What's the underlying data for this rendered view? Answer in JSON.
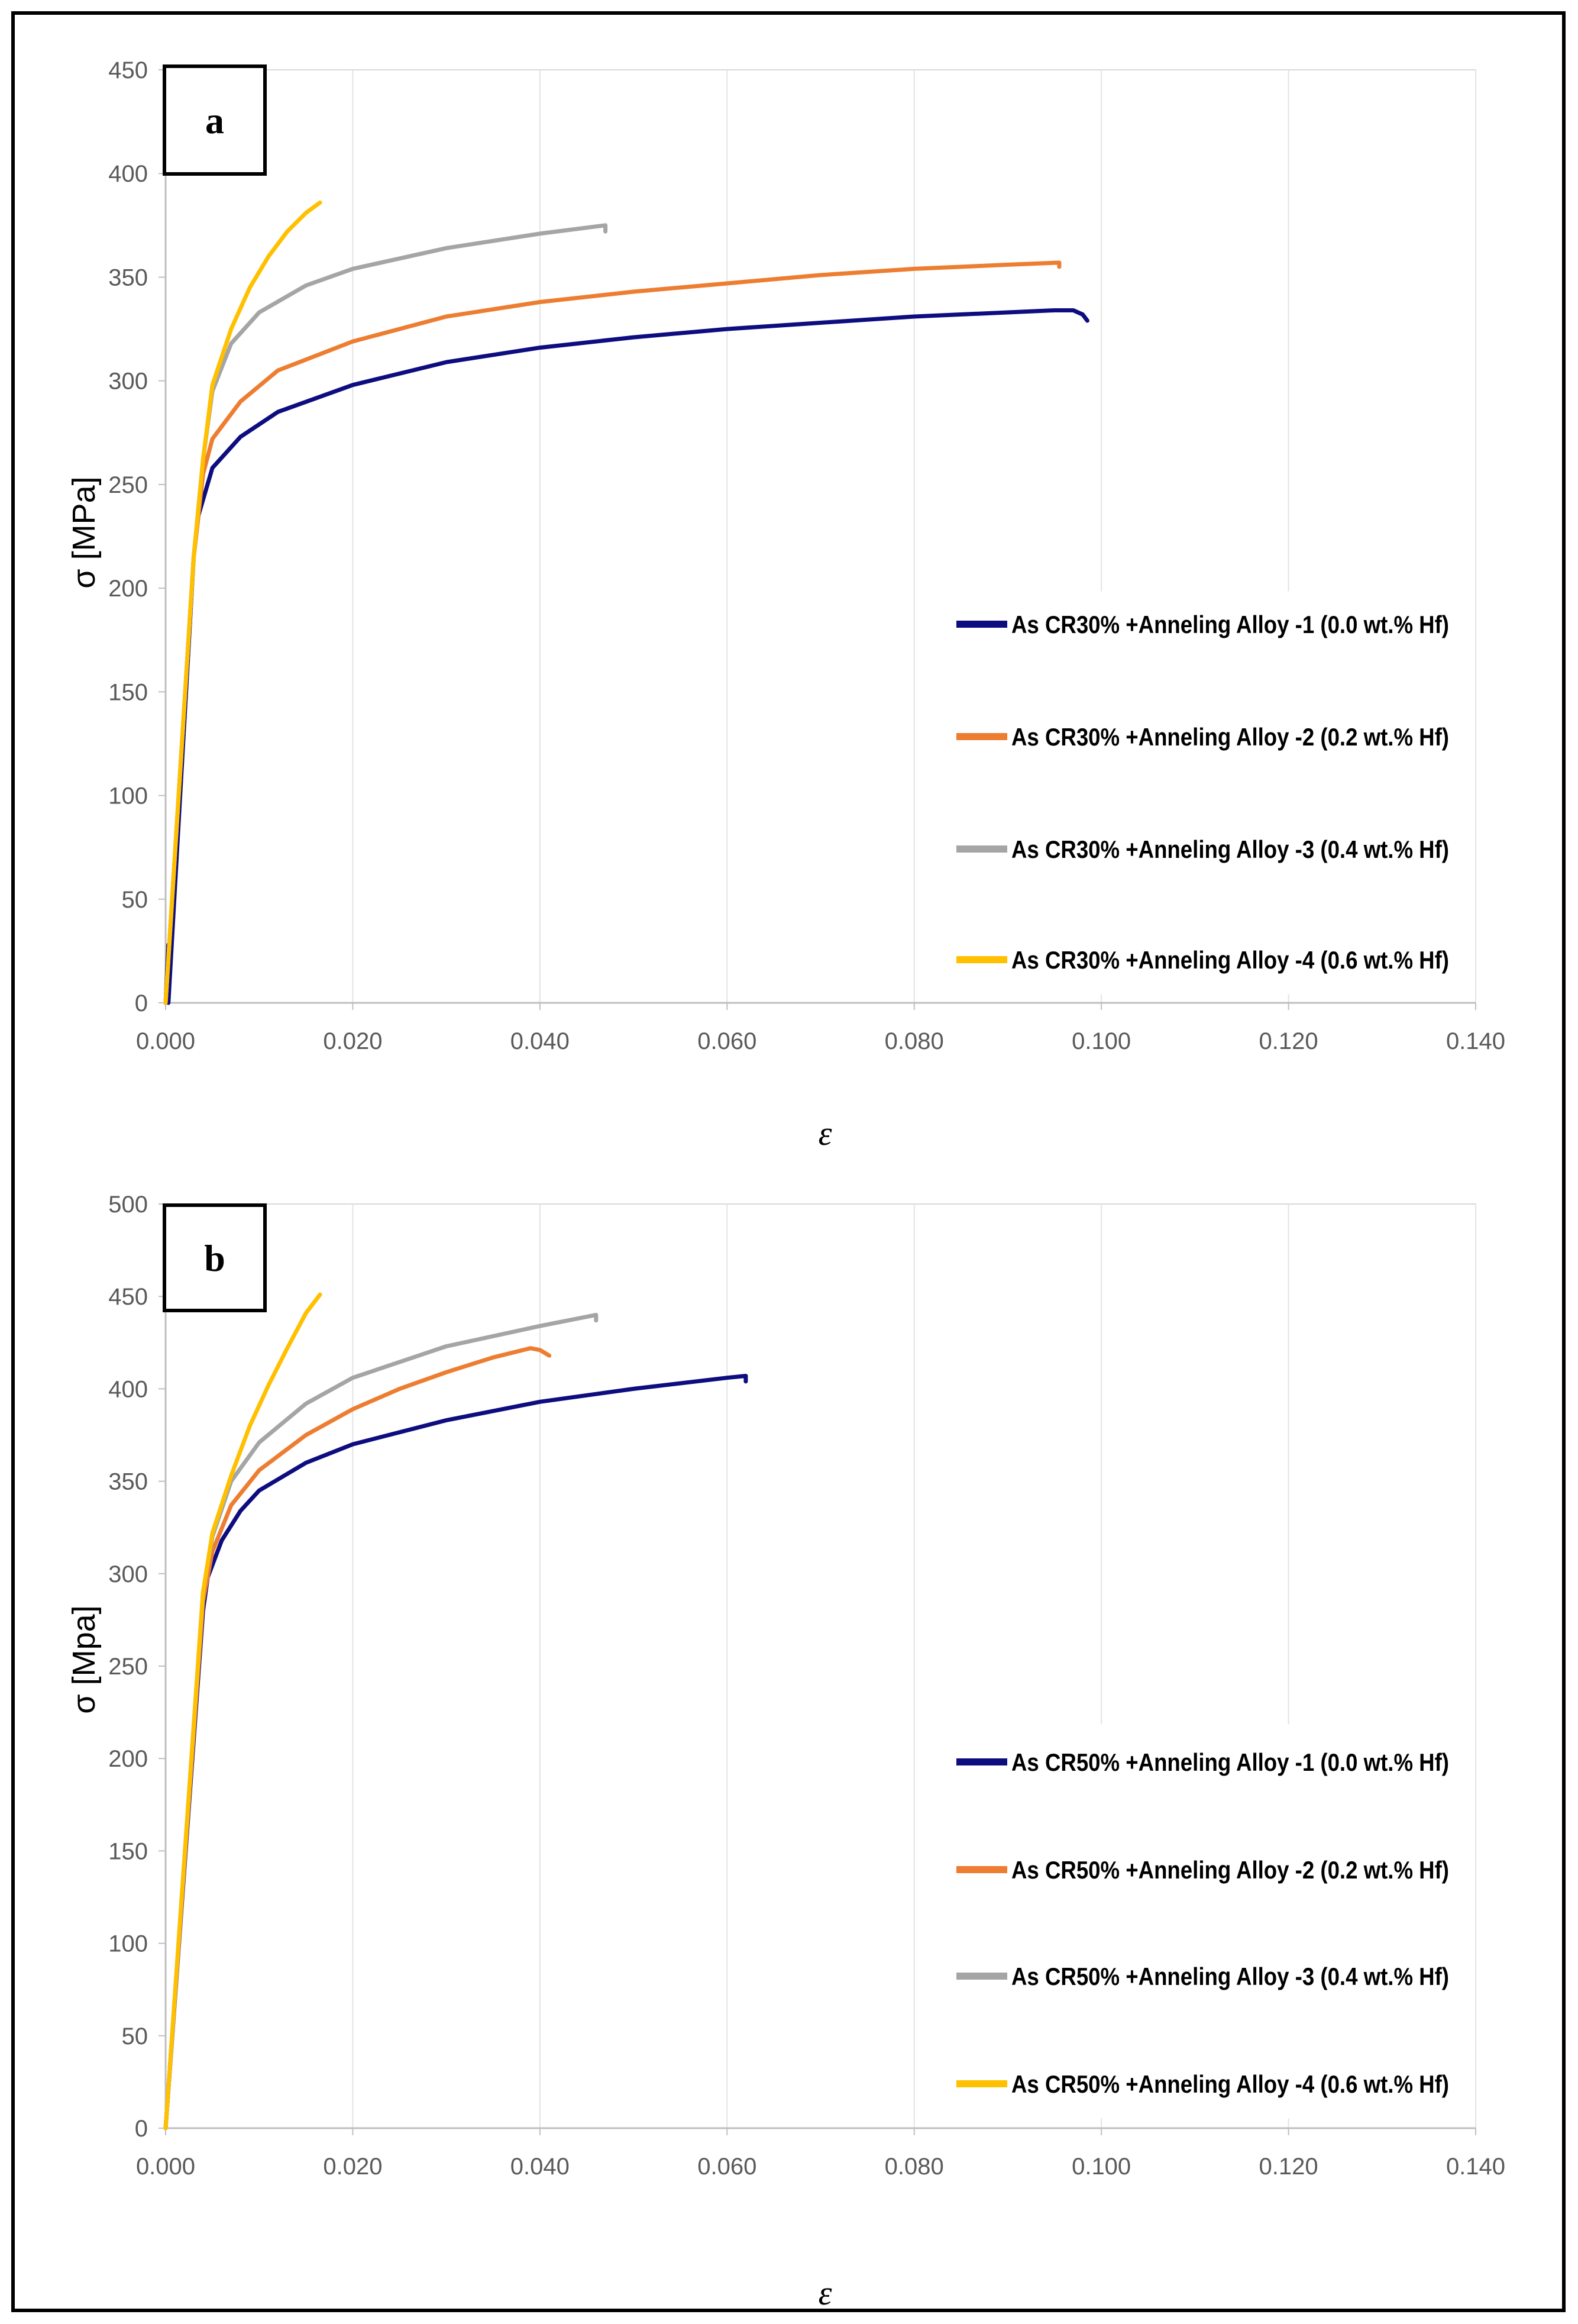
{
  "chart_data": [
    {
      "type": "line",
      "panel_label": "a",
      "ylabel": "σ [MPa]",
      "xlabel": "ε",
      "xlim": [
        0,
        0.14
      ],
      "ylim": [
        0,
        450
      ],
      "x_ticks": [
        0.0,
        0.02,
        0.04,
        0.06,
        0.08,
        0.1,
        0.12,
        0.14
      ],
      "x_tick_labels": [
        "0.000",
        "0.020",
        "0.040",
        "0.060",
        "0.080",
        "0.100",
        "0.120",
        "0.140"
      ],
      "y_ticks": [
        0,
        50,
        100,
        150,
        200,
        250,
        300,
        350,
        400,
        450
      ],
      "y_tick_labels": [
        "0",
        "50",
        "100",
        "150",
        "200",
        "250",
        "300",
        "350",
        "400",
        "450"
      ],
      "grid": "vertical",
      "legend_position": "bottom-right",
      "series": [
        {
          "name": "As CR30% +Anneling Alloy -1 (0.0 wt.% Hf)",
          "color": "#0d0d80",
          "points": [
            [
              0,
              0
            ],
            [
              0.0003,
              28
            ],
            [
              0.0003,
              0
            ],
            [
              0.003,
              215
            ],
            [
              0.0035,
              235
            ],
            [
              0.005,
              258
            ],
            [
              0.008,
              273
            ],
            [
              0.012,
              285
            ],
            [
              0.02,
              298
            ],
            [
              0.03,
              309
            ],
            [
              0.04,
              316
            ],
            [
              0.05,
              321
            ],
            [
              0.06,
              325
            ],
            [
              0.07,
              328
            ],
            [
              0.08,
              331
            ],
            [
              0.09,
              333
            ],
            [
              0.095,
              334
            ],
            [
              0.097,
              334
            ],
            [
              0.098,
              332
            ],
            [
              0.0985,
              329
            ]
          ]
        },
        {
          "name": "As CR30% +Anneling Alloy -2 (0.2 wt.% Hf)",
          "color": "#ed7d31",
          "points": [
            [
              0,
              0
            ],
            [
              0.003,
              215
            ],
            [
              0.004,
              255
            ],
            [
              0.005,
              272
            ],
            [
              0.008,
              290
            ],
            [
              0.012,
              305
            ],
            [
              0.02,
              319
            ],
            [
              0.03,
              331
            ],
            [
              0.04,
              338
            ],
            [
              0.05,
              343
            ],
            [
              0.06,
              347
            ],
            [
              0.07,
              351
            ],
            [
              0.08,
              354
            ],
            [
              0.09,
              356
            ],
            [
              0.0955,
              357
            ],
            [
              0.0955,
              355
            ]
          ]
        },
        {
          "name": "As CR30% +Anneling Alloy -3 (0.4 wt.% Hf)",
          "color": "#a5a5a5",
          "points": [
            [
              0,
              0
            ],
            [
              0.003,
              215
            ],
            [
              0.004,
              262
            ],
            [
              0.005,
              295
            ],
            [
              0.007,
              318
            ],
            [
              0.01,
              333
            ],
            [
              0.015,
              346
            ],
            [
              0.02,
              354
            ],
            [
              0.03,
              364
            ],
            [
              0.04,
              371
            ],
            [
              0.047,
              375
            ],
            [
              0.047,
              372
            ]
          ]
        },
        {
          "name": "As CR30% +Anneling Alloy -4 (0.6 wt.% Hf)",
          "color": "#ffc000",
          "points": [
            [
              0,
              0
            ],
            [
              0.003,
              215
            ],
            [
              0.004,
              262
            ],
            [
              0.005,
              298
            ],
            [
              0.007,
              325
            ],
            [
              0.009,
              345
            ],
            [
              0.011,
              360
            ],
            [
              0.013,
              372
            ],
            [
              0.015,
              381
            ],
            [
              0.0165,
              386
            ]
          ]
        }
      ]
    },
    {
      "type": "line",
      "panel_label": "b",
      "ylabel": "σ [Mpa]",
      "xlabel": "ε",
      "xlim": [
        0,
        0.14
      ],
      "ylim": [
        0,
        500
      ],
      "x_ticks": [
        0.0,
        0.02,
        0.04,
        0.06,
        0.08,
        0.1,
        0.12,
        0.14
      ],
      "x_tick_labels": [
        "0.000",
        "0.020",
        "0.040",
        "0.060",
        "0.080",
        "0.100",
        "0.120",
        "0.140"
      ],
      "y_ticks": [
        0,
        50,
        100,
        150,
        200,
        250,
        300,
        350,
        400,
        450,
        500
      ],
      "y_tick_labels": [
        "0",
        "50",
        "100",
        "150",
        "200",
        "250",
        "300",
        "350",
        "400",
        "450",
        "500"
      ],
      "grid": "vertical",
      "legend_position": "bottom-right",
      "series": [
        {
          "name": "As CR50% +Anneling Alloy -1 (0.0 wt.% Hf)",
          "color": "#0d0d80",
          "points": [
            [
              0,
              0
            ],
            [
              0.004,
              280
            ],
            [
              0.0045,
              298
            ],
            [
              0.006,
              318
            ],
            [
              0.008,
              334
            ],
            [
              0.01,
              345
            ],
            [
              0.015,
              360
            ],
            [
              0.02,
              370
            ],
            [
              0.03,
              383
            ],
            [
              0.04,
              393
            ],
            [
              0.05,
              400
            ],
            [
              0.06,
              406
            ],
            [
              0.062,
              407
            ],
            [
              0.062,
              404
            ]
          ]
        },
        {
          "name": "As CR50% +Anneling Alloy -2 (0.2 wt.% Hf)",
          "color": "#ed7d31",
          "points": [
            [
              0,
              0
            ],
            [
              0.004,
              285
            ],
            [
              0.005,
              312
            ],
            [
              0.007,
              337
            ],
            [
              0.01,
              356
            ],
            [
              0.015,
              375
            ],
            [
              0.02,
              389
            ],
            [
              0.025,
              400
            ],
            [
              0.03,
              409
            ],
            [
              0.035,
              417
            ],
            [
              0.039,
              422
            ],
            [
              0.04,
              421
            ],
            [
              0.041,
              418
            ]
          ]
        },
        {
          "name": "As CR50% +Anneling Alloy -3 (0.4 wt.% Hf)",
          "color": "#a5a5a5",
          "points": [
            [
              0,
              0
            ],
            [
              0.004,
              290
            ],
            [
              0.005,
              320
            ],
            [
              0.007,
              350
            ],
            [
              0.01,
              371
            ],
            [
              0.015,
              392
            ],
            [
              0.02,
              406
            ],
            [
              0.03,
              423
            ],
            [
              0.04,
              434
            ],
            [
              0.046,
              440
            ],
            [
              0.046,
              437
            ]
          ]
        },
        {
          "name": "As CR50% +Anneling Alloy -4 (0.6 wt.% Hf)",
          "color": "#ffc000",
          "points": [
            [
              0,
              0
            ],
            [
              0.004,
              290
            ],
            [
              0.005,
              322
            ],
            [
              0.007,
              353
            ],
            [
              0.009,
              380
            ],
            [
              0.011,
              402
            ],
            [
              0.013,
              422
            ],
            [
              0.015,
              441
            ],
            [
              0.0165,
              451
            ]
          ]
        }
      ]
    }
  ]
}
